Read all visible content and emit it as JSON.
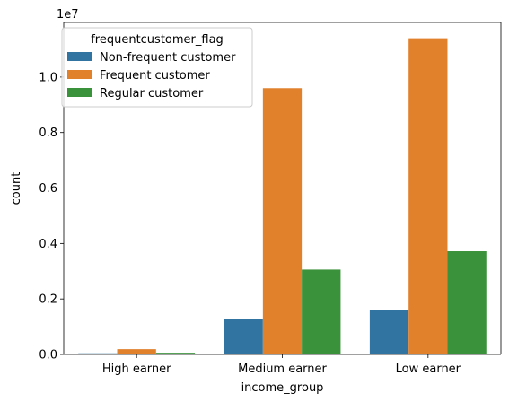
{
  "chart_data": {
    "type": "bar",
    "categories": [
      "High earner",
      "Medium earner",
      "Low earner"
    ],
    "series": [
      {
        "name": "Non-frequent customer",
        "color": "#3274a1",
        "values": [
          40000,
          1290000,
          1600000
        ]
      },
      {
        "name": "Frequent customer",
        "color": "#e1812c",
        "values": [
          190000,
          9600000,
          11400000
        ]
      },
      {
        "name": "Regular customer",
        "color": "#3a923a",
        "values": [
          60000,
          3060000,
          3720000
        ]
      }
    ],
    "xlabel": "income_group",
    "ylabel": "count",
    "offset_text": "1e7",
    "ylim": [
      0,
      11970000
    ],
    "yticks": [
      0,
      2000000,
      4000000,
      6000000,
      8000000,
      10000000
    ],
    "ytick_labels": [
      "0.0",
      "0.2",
      "0.4",
      "0.6",
      "0.8",
      "1.0"
    ],
    "legend_title": "frequentcustomer_flag",
    "legend_position": "top-left",
    "grid": false
  }
}
